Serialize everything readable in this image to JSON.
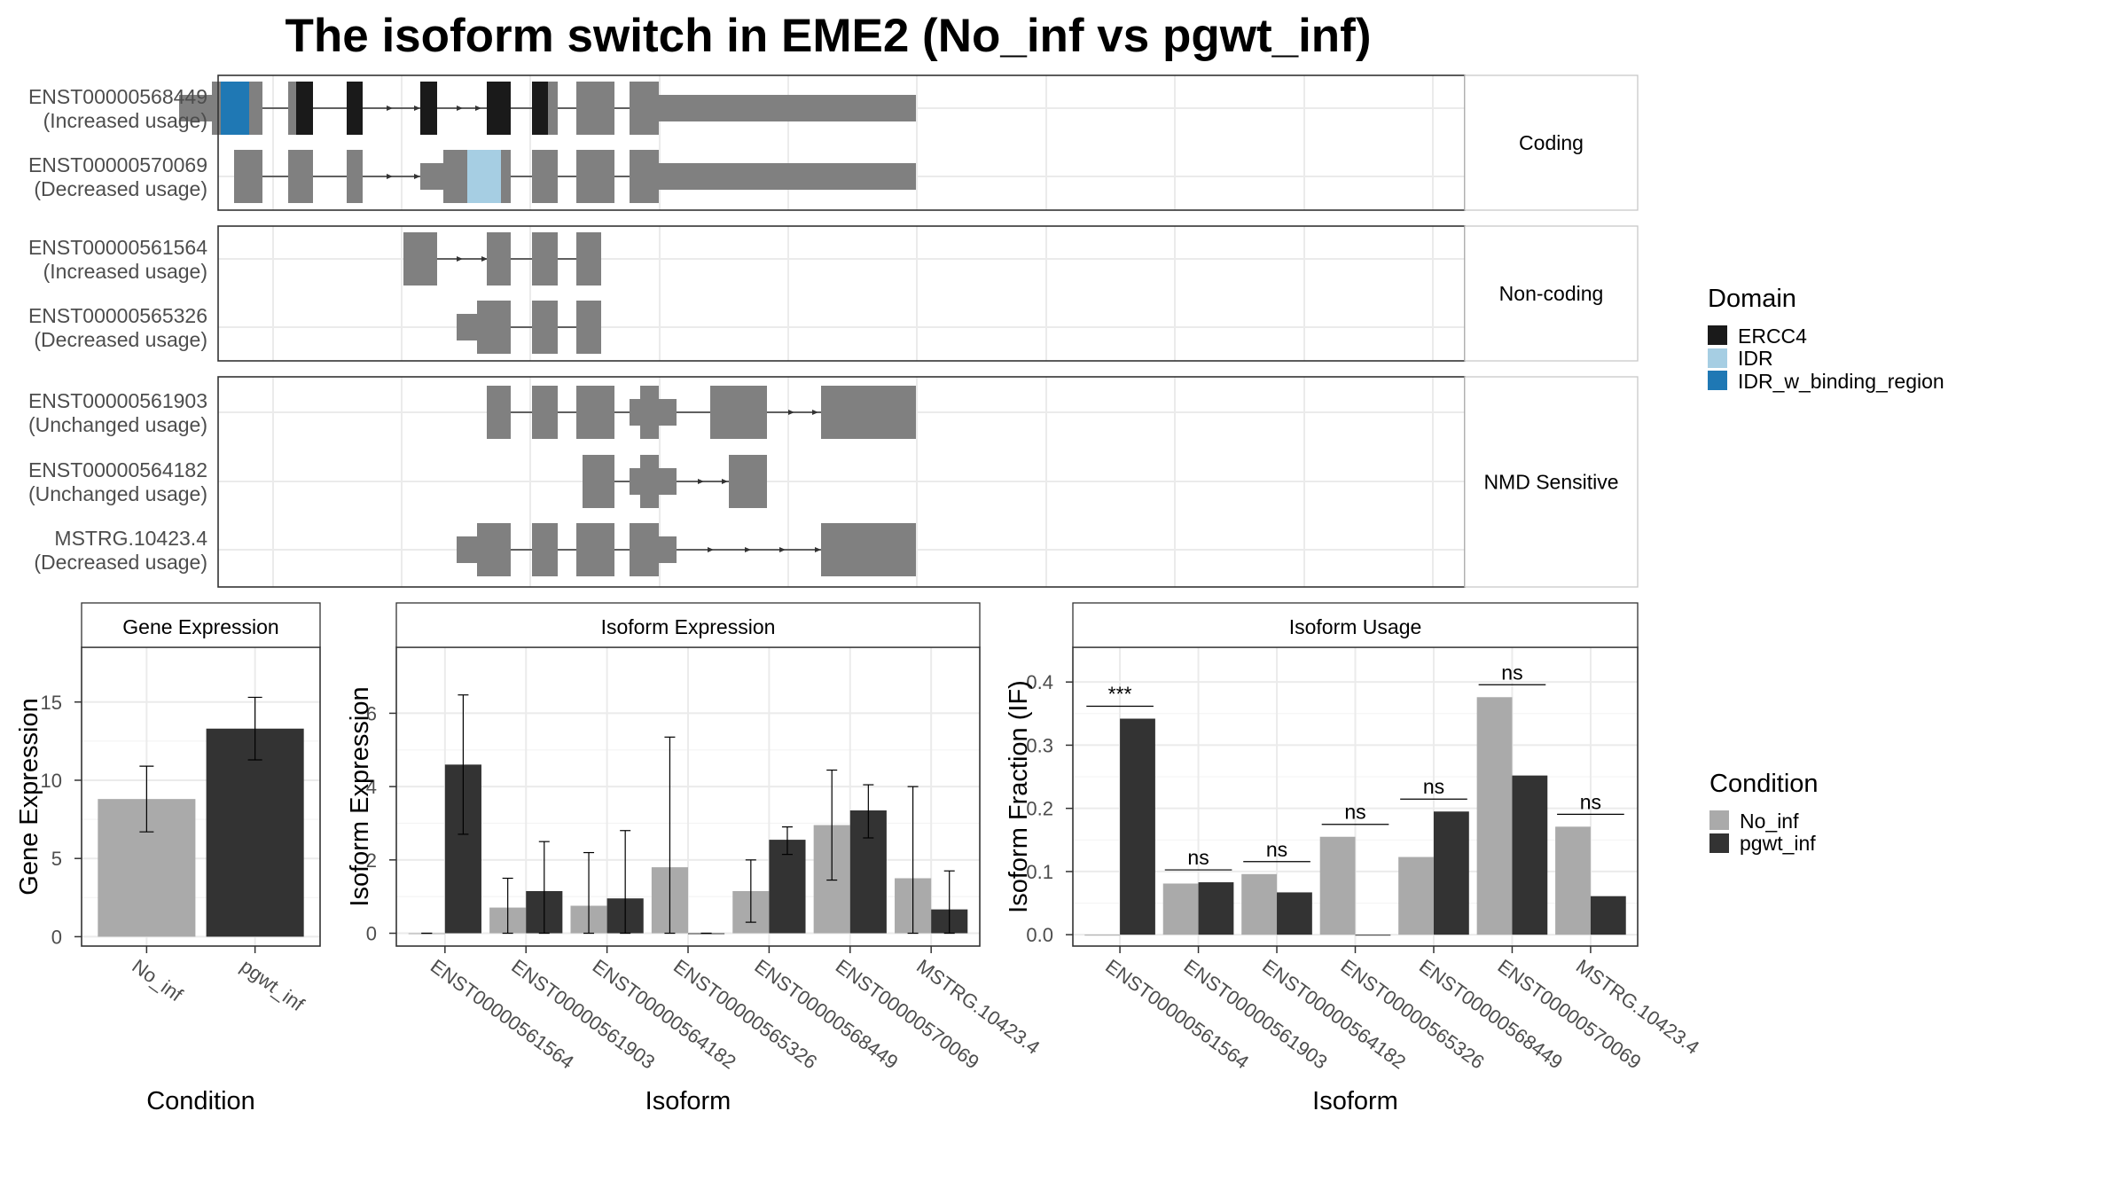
{
  "title": "The isoform switch in EME2 (No_inf vs pgwt_inf)",
  "colors": {
    "exon": "#808080",
    "ERCC4": "#1a1a1a",
    "IDR": "#a6cee3",
    "IDR_w_binding_region": "#1f78b4",
    "No_inf": "#aaaaaa",
    "pgwt_inf": "#333333",
    "grid": "#ebebeb",
    "strip": "#f2f2f2",
    "frame": "#333333"
  },
  "structure": {
    "panels": [
      {
        "label": "Coding",
        "isoforms": [
          {
            "name": "ENST00000568449",
            "usage": "(Increased usage)",
            "exons": [
              [
                202,
                239,
                "utr"
              ],
              [
                239,
                296,
                "cds"
              ],
              [
                325,
                353,
                "cds"
              ],
              [
                391,
                409,
                "cds"
              ],
              [
                474,
                493,
                "cds"
              ],
              [
                549,
                576,
                "cds"
              ],
              [
                600,
                629,
                "cds"
              ],
              [
                650,
                693,
                "cds"
              ],
              [
                710,
                743,
                "cds"
              ],
              [
                743,
                1033,
                "utr"
              ]
            ],
            "domains": [
              [
                249,
                281,
                "IDR_w_binding_region"
              ],
              [
                334,
                353,
                "ERCC4"
              ],
              [
                391,
                409,
                "ERCC4"
              ],
              [
                474,
                493,
                "ERCC4"
              ],
              [
                549,
                576,
                "ERCC4"
              ],
              [
                600,
                618,
                "ERCC4"
              ]
            ],
            "arrows": [
              441,
              472,
              520,
              541
            ]
          },
          {
            "name": "ENST00000570069",
            "usage": "(Decreased usage)",
            "exons": [
              [
                264,
                296,
                "cds"
              ],
              [
                325,
                353,
                "cds"
              ],
              [
                391,
                409,
                "cds"
              ],
              [
                474,
                500,
                "utr"
              ],
              [
                500,
                576,
                "cds"
              ],
              [
                600,
                629,
                "cds"
              ],
              [
                650,
                693,
                "cds"
              ],
              [
                710,
                743,
                "cds"
              ],
              [
                743,
                1033,
                "utr"
              ]
            ],
            "domains": [
              [
                527,
                565,
                "IDR"
              ]
            ],
            "arrows": [
              441,
              472
            ]
          }
        ]
      },
      {
        "label": "Non-coding",
        "isoforms": [
          {
            "name": "ENST00000561564",
            "usage": "(Increased usage)",
            "exons": [
              [
                455,
                493,
                "cds"
              ],
              [
                549,
                576,
                "cds"
              ],
              [
                600,
                629,
                "cds"
              ],
              [
                650,
                678,
                "cds"
              ]
            ],
            "domains": [],
            "arrows": [
              520,
              548
            ]
          },
          {
            "name": "ENST00000565326",
            "usage": "(Decreased usage)",
            "exons": [
              [
                515,
                538,
                "utr"
              ],
              [
                538,
                576,
                "cds"
              ],
              [
                600,
                629,
                "cds"
              ],
              [
                650,
                678,
                "cds"
              ]
            ],
            "domains": [],
            "arrows": []
          }
        ]
      },
      {
        "label": "NMD Sensitive",
        "isoforms": [
          {
            "name": "ENST00000561903",
            "usage": "(Unchanged usage)",
            "exons": [
              [
                549,
                576,
                "cds"
              ],
              [
                600,
                629,
                "cds"
              ],
              [
                650,
                693,
                "cds"
              ],
              [
                710,
                722,
                "utr"
              ],
              [
                722,
                743,
                "cds"
              ],
              [
                743,
                763,
                "utr"
              ],
              [
                801,
                865,
                "cds"
              ],
              [
                926,
                1033,
                "cds"
              ]
            ],
            "domains": [],
            "arrows": [
              894,
              921
            ]
          },
          {
            "name": "ENST00000564182",
            "usage": "(Unchanged usage)",
            "exons": [
              [
                657,
                693,
                "cds"
              ],
              [
                710,
                722,
                "utr"
              ],
              [
                722,
                743,
                "cds"
              ],
              [
                743,
                763,
                "utr"
              ],
              [
                822,
                865,
                "cds"
              ]
            ],
            "domains": [],
            "arrows": [
              792,
              819
            ]
          },
          {
            "name": "MSTRG.10423.4",
            "usage": "(Decreased usage)",
            "exons": [
              [
                515,
                538,
                "utr"
              ],
              [
                538,
                576,
                "cds"
              ],
              [
                600,
                629,
                "cds"
              ],
              [
                650,
                693,
                "cds"
              ],
              [
                710,
                743,
                "cds"
              ],
              [
                743,
                763,
                "utr"
              ],
              [
                926,
                1033,
                "cds"
              ]
            ],
            "domains": [],
            "arrows": [
              803,
              845,
              884,
              924
            ]
          }
        ]
      }
    ],
    "legend": {
      "title": "Domain",
      "items": [
        "ERCC4",
        "IDR",
        "IDR_w_binding_region"
      ]
    }
  },
  "chart_data": [
    {
      "type": "bar",
      "title": "Gene Expression",
      "xlabel": "Condition",
      "ylabel": "Gene Expression",
      "categories": [
        "No_inf",
        "pgwt_inf"
      ],
      "values": [
        8.8,
        13.3
      ],
      "error": [
        [
          6.7,
          10.9
        ],
        [
          11.3,
          15.3
        ]
      ],
      "ylim": [
        -0.6,
        18.5
      ],
      "yticks": [
        0,
        5,
        10,
        15
      ]
    },
    {
      "type": "bar",
      "title": "Isoform Expression",
      "xlabel": "Isoform",
      "ylabel": "Isoform Expression",
      "categories": [
        "ENST00000561564",
        "ENST00000561903",
        "ENST00000564182",
        "ENST00000565326",
        "ENST00000568449",
        "ENST00000570069",
        "MSTRG.10423.4"
      ],
      "series": [
        {
          "name": "No_inf",
          "values": [
            0.0,
            0.7,
            0.75,
            1.8,
            1.15,
            2.95,
            1.5
          ],
          "error": [
            [
              0,
              0
            ],
            [
              0,
              1.5
            ],
            [
              0,
              2.2
            ],
            [
              0,
              5.35
            ],
            [
              0.3,
              2.0
            ],
            [
              1.45,
              4.45
            ],
            [
              0,
              4.0
            ]
          ]
        },
        {
          "name": "pgwt_inf",
          "values": [
            4.6,
            1.15,
            0.95,
            0.0,
            2.55,
            3.35,
            0.65
          ],
          "error": [
            [
              2.7,
              6.5
            ],
            [
              0,
              2.5
            ],
            [
              0,
              2.8
            ],
            [
              0,
              0
            ],
            [
              2.15,
              2.9
            ],
            [
              2.6,
              4.05
            ],
            [
              0,
              1.7
            ]
          ]
        }
      ],
      "ylim": [
        -0.35,
        7.8
      ],
      "yticks": [
        0,
        2,
        4,
        6
      ]
    },
    {
      "type": "bar",
      "title": "Isoform Usage",
      "xlabel": "Isoform",
      "ylabel": "Isoform Fraction (IF)",
      "categories": [
        "ENST00000561564",
        "ENST00000561903",
        "ENST00000564182",
        "ENST00000565326",
        "ENST00000568449",
        "ENST00000570069",
        "MSTRG.10423.4"
      ],
      "series": [
        {
          "name": "No_inf",
          "values": [
            0.0,
            0.081,
            0.096,
            0.155,
            0.123,
            0.376,
            0.171
          ]
        },
        {
          "name": "pgwt_inf",
          "values": [
            0.342,
            0.083,
            0.067,
            0.0,
            0.195,
            0.252,
            0.061
          ]
        }
      ],
      "significance": [
        "***",
        "ns",
        "ns",
        "ns",
        "ns",
        "ns",
        "ns"
      ],
      "ylim": [
        -0.018,
        0.455
      ],
      "yticks": [
        0.0,
        0.1,
        0.2,
        0.3,
        0.4
      ],
      "ytick_labels": [
        "0.0",
        "0.1",
        "0.2",
        "0.3",
        "0.4"
      ]
    }
  ],
  "legend_condition": {
    "title": "Condition",
    "items": [
      "No_inf",
      "pgwt_inf"
    ]
  }
}
